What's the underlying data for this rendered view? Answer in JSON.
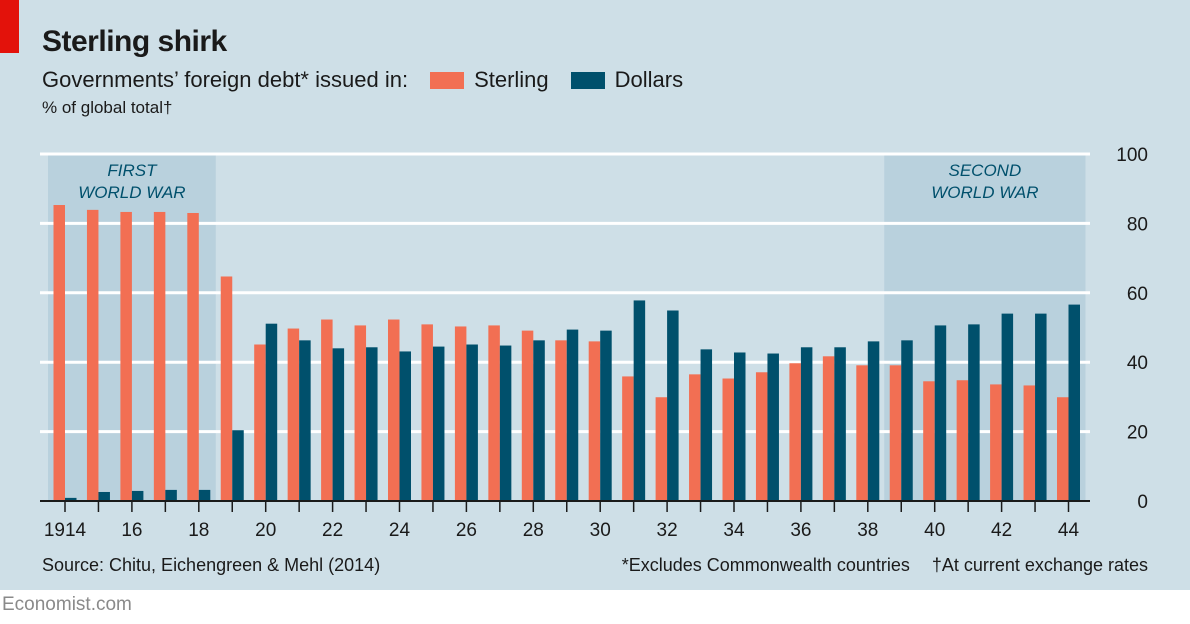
{
  "header": {
    "title": "Sterling shirk",
    "subtitle": "Governments’ foreign debt* issued in:",
    "unit": "% of global total†"
  },
  "footer": {
    "source": "Source: Chitu, Eichengreen & Mehl (2014)",
    "note1": "*Excludes Commonwealth countries",
    "note2": "†At current exchange rates",
    "brand": "Economist.com"
  },
  "colors": {
    "sterling": "#f26f53",
    "dollars": "#00506c",
    "shade": "#b9d1dd",
    "background": "#cedfe7"
  },
  "chart_data": {
    "type": "bar",
    "title": "Sterling shirk",
    "ylabel": "% of global total",
    "ylim": [
      0,
      100
    ],
    "yticks": [
      "0",
      "20",
      "40",
      "60",
      "80",
      "100"
    ],
    "x": [
      1914,
      1915,
      1916,
      1917,
      1918,
      1919,
      1920,
      1921,
      1922,
      1923,
      1924,
      1925,
      1926,
      1927,
      1928,
      1929,
      1930,
      1931,
      1932,
      1933,
      1934,
      1935,
      1936,
      1937,
      1938,
      1939,
      1940,
      1941,
      1942,
      1943,
      1944
    ],
    "xtick_labels": [
      {
        "year": 1914,
        "label": "1914"
      },
      {
        "year": 1916,
        "label": "16"
      },
      {
        "year": 1918,
        "label": "18"
      },
      {
        "year": 1920,
        "label": "20"
      },
      {
        "year": 1922,
        "label": "22"
      },
      {
        "year": 1924,
        "label": "24"
      },
      {
        "year": 1926,
        "label": "26"
      },
      {
        "year": 1928,
        "label": "28"
      },
      {
        "year": 1930,
        "label": "30"
      },
      {
        "year": 1932,
        "label": "32"
      },
      {
        "year": 1934,
        "label": "34"
      },
      {
        "year": 1936,
        "label": "36"
      },
      {
        "year": 1938,
        "label": "38"
      },
      {
        "year": 1940,
        "label": "40"
      },
      {
        "year": 1942,
        "label": "42"
      },
      {
        "year": 1944,
        "label": "44"
      }
    ],
    "legend": {
      "placement": "top",
      "entries": [
        "Sterling",
        "Dollars"
      ]
    },
    "series": [
      {
        "name": "Sterling",
        "values": [
          85.3,
          83.9,
          83.3,
          83.3,
          83.0,
          64.7,
          45.1,
          49.7,
          52.3,
          50.6,
          52.3,
          50.9,
          50.3,
          50.6,
          49.1,
          46.3,
          46.0,
          35.9,
          29.9,
          36.5,
          35.3,
          37.1,
          39.7,
          41.7,
          39.1,
          39.1,
          34.5,
          34.8,
          33.6,
          33.3,
          29.9
        ]
      },
      {
        "name": "Dollars",
        "values": [
          0.9,
          2.6,
          2.9,
          3.2,
          3.2,
          20.4,
          51.1,
          46.3,
          44.0,
          44.3,
          43.1,
          44.5,
          45.1,
          44.8,
          46.3,
          49.4,
          49.1,
          57.8,
          54.9,
          43.7,
          42.8,
          42.5,
          44.3,
          44.3,
          46.0,
          46.3,
          50.6,
          50.9,
          54.0,
          54.0,
          56.6
        ]
      }
    ],
    "annotations": [
      {
        "label_line1": "FIRST",
        "label_line2": "WORLD WAR",
        "from": 1914,
        "to": 1918
      },
      {
        "label_line1": "SECOND",
        "label_line2": "WORLD WAR",
        "from": 1939,
        "to": 1944
      }
    ]
  }
}
